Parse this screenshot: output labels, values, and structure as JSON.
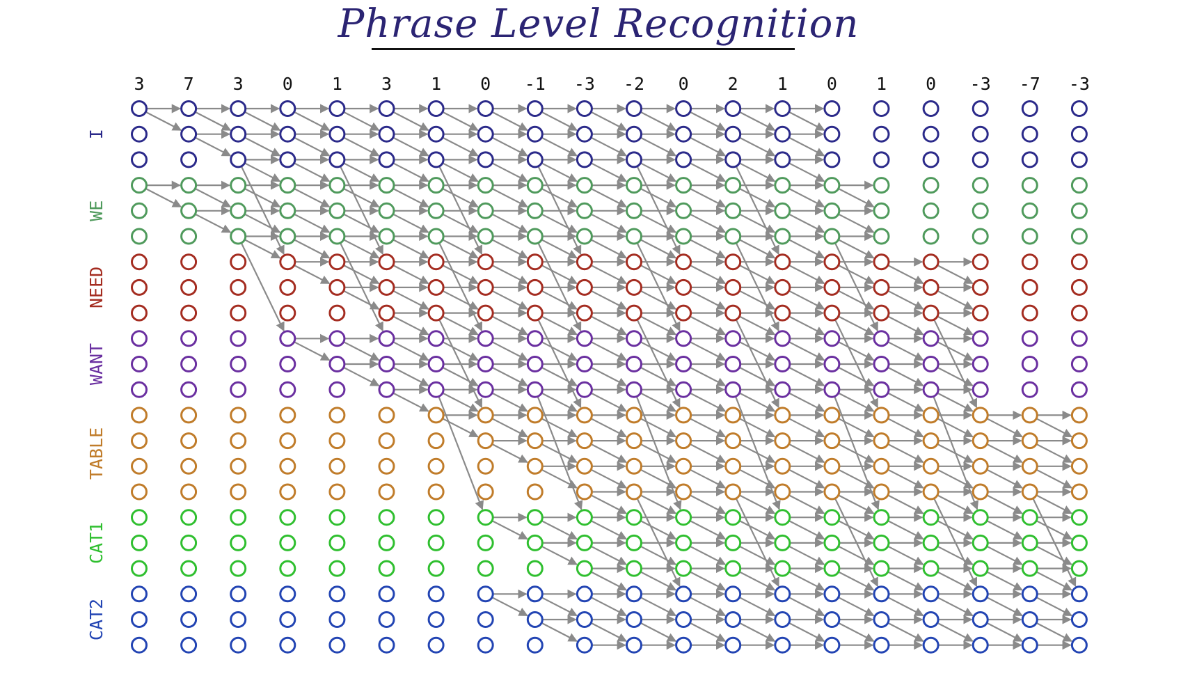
{
  "title": "Phrase Level Recognition",
  "frame_scores": [
    "3",
    "7",
    "3",
    "0",
    "1",
    "3",
    "1",
    "0",
    "-1",
    "-3",
    "-2",
    "0",
    "2",
    "1",
    "0",
    "1",
    "0",
    "-3",
    "-7",
    "-3"
  ],
  "words": [
    {
      "label": "I",
      "color": "#2b2a8a",
      "states": 3
    },
    {
      "label": "WE",
      "color": "#4f9a5c",
      "states": 3
    },
    {
      "label": "NEED",
      "color": "#a42c20",
      "states": 3
    },
    {
      "label": "WANT",
      "color": "#6a2fa0",
      "states": 3
    },
    {
      "label": "TABLE",
      "color": "#c07c2a",
      "states": 4
    },
    {
      "label": "CAT1",
      "color": "#2fbf2f",
      "states": 3
    },
    {
      "label": "CAT2",
      "color": "#2244b3",
      "states": 3
    }
  ],
  "colors": {
    "arrow": "#8a8a8a",
    "title": "#2b2473",
    "underline": "#111111"
  }
}
